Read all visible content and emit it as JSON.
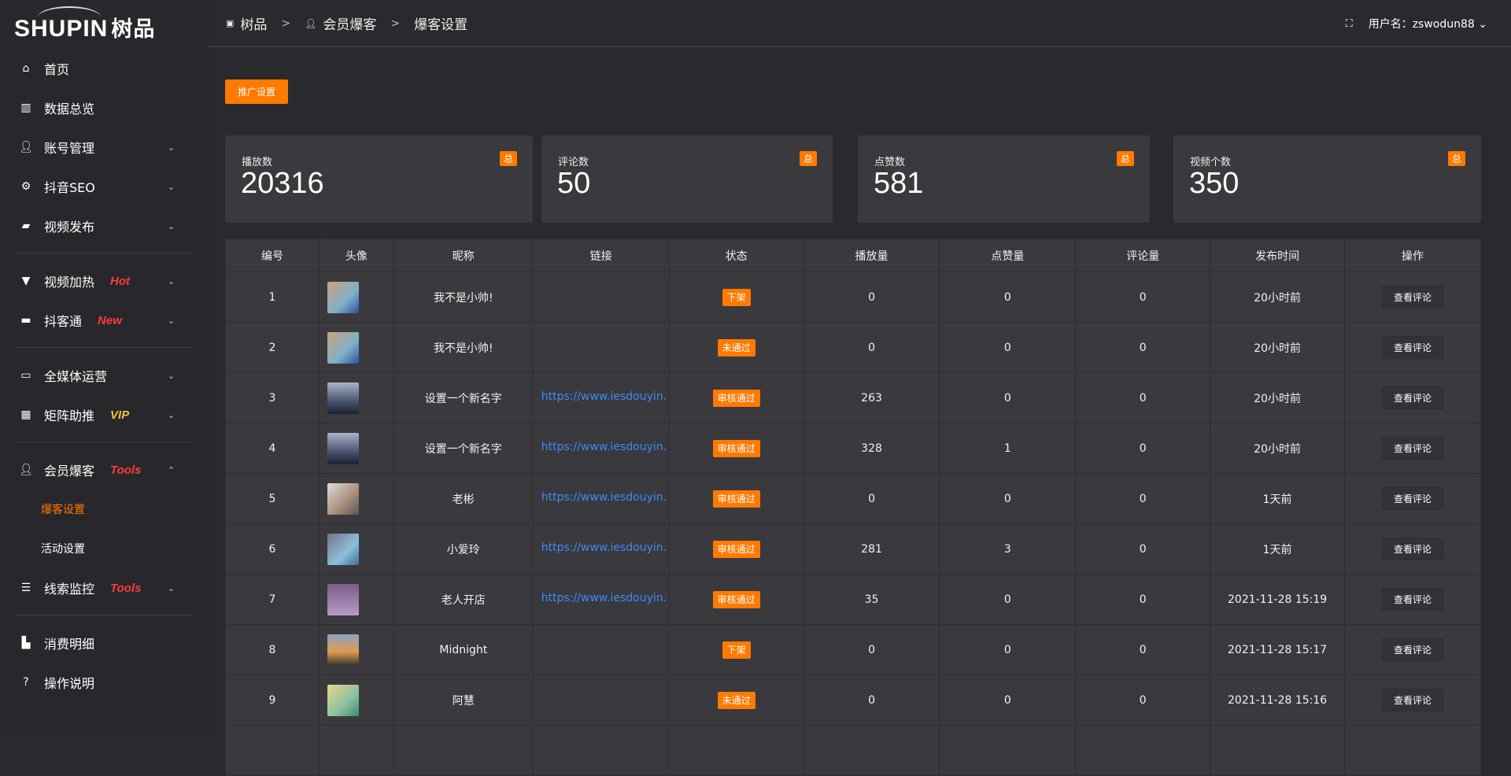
{
  "logo": {
    "text": "SHUPIN",
    "cn": "树品"
  },
  "breadcrumb": [
    "树品",
    "会员爆客",
    "爆客设置"
  ],
  "user": {
    "label": "用户名：zswodun88"
  },
  "sidebar": {
    "items": [
      {
        "label": "首页",
        "icon": "home-icon"
      },
      {
        "label": "数据总览",
        "icon": "bar-chart-icon"
      },
      {
        "label": "账号管理",
        "icon": "user-icon"
      },
      {
        "label": "抖音SEO",
        "icon": "gear-icon"
      },
      {
        "label": "视频发布",
        "icon": "camera-icon"
      },
      {
        "label": "视频加热",
        "icon": "sign-icon",
        "tag": "Hot"
      },
      {
        "label": "抖客通",
        "icon": "chat-icon",
        "tag": "New"
      },
      {
        "label": "全媒体运营",
        "icon": "monitor-icon"
      },
      {
        "label": "矩阵助推",
        "icon": "grid-icon",
        "tag": "VIP"
      },
      {
        "label": "会员爆客",
        "icon": "user-icon",
        "tag": "Tools"
      },
      {
        "label": "线索监控",
        "icon": "sliders-icon",
        "tag": "Tools"
      },
      {
        "label": "消费明细",
        "icon": "wallet-icon"
      },
      {
        "label": "操作说明",
        "icon": "question-icon"
      }
    ],
    "sub": [
      "爆客设置",
      "活动设置"
    ],
    "colors": {
      "Hot": "#ff3b3b",
      "New": "#ff3b3b",
      "VIP": "#f5c242",
      "Tools": "#ff3b3b",
      "active": "#ff7a00"
    }
  },
  "promo_button": "推广设置",
  "stats": [
    {
      "label": "播放数",
      "value": "20316",
      "badge": "总"
    },
    {
      "label": "评论数",
      "value": "50",
      "badge": "总"
    },
    {
      "label": "点赞数",
      "value": "581",
      "badge": "总"
    },
    {
      "label": "视频个数",
      "value": "350",
      "badge": "总"
    }
  ],
  "table": {
    "headers": [
      "编号",
      "头像",
      "昵称",
      "链接",
      "状态",
      "播放量",
      "点赞量",
      "评论量",
      "发布时间",
      "操作"
    ],
    "rows": [
      {
        "id": "1",
        "name": "我不是小帅!",
        "link": "",
        "status": "下架",
        "play": "0",
        "like": "0",
        "comment": "0",
        "time": "20小时前",
        "op": "查看评论"
      },
      {
        "id": "2",
        "name": "我不是小帅!",
        "link": "",
        "status": "未通过",
        "play": "0",
        "like": "0",
        "comment": "0",
        "time": "20小时前",
        "op": "查看评论"
      },
      {
        "id": "3",
        "name": "设置一个新名字",
        "link": "https://www.iesdouyin.c",
        "status": "审核通过",
        "play": "263",
        "like": "0",
        "comment": "0",
        "time": "20小时前",
        "op": "查看评论"
      },
      {
        "id": "4",
        "name": "设置一个新名字",
        "link": "https://www.iesdouyin.c",
        "status": "审核通过",
        "play": "328",
        "like": "1",
        "comment": "0",
        "time": "20小时前",
        "op": "查看评论"
      },
      {
        "id": "5",
        "name": "老彬",
        "link": "https://www.iesdouyin.c",
        "status": "审核通过",
        "play": "0",
        "like": "0",
        "comment": "0",
        "time": "1天前",
        "op": "查看评论"
      },
      {
        "id": "6",
        "name": "小爱玲",
        "link": "https://www.iesdouyin.c",
        "status": "审核通过",
        "play": "281",
        "like": "3",
        "comment": "0",
        "time": "1天前",
        "op": "查看评论"
      },
      {
        "id": "7",
        "name": "老人开店",
        "link": "https://www.iesdouyin.c",
        "status": "审核通过",
        "play": "35",
        "like": "0",
        "comment": "0",
        "time": "2021-11-28 15:19",
        "op": "查看评论"
      },
      {
        "id": "8",
        "name": "Midnight",
        "link": "",
        "status": "下架",
        "play": "0",
        "like": "0",
        "comment": "0",
        "time": "2021-11-28 15:17",
        "op": "查看评论"
      },
      {
        "id": "9",
        "name": "阿慧",
        "link": "",
        "status": "未通过",
        "play": "0",
        "like": "0",
        "comment": "0",
        "time": "2021-11-28 15:16",
        "op": "查看评论"
      }
    ]
  }
}
